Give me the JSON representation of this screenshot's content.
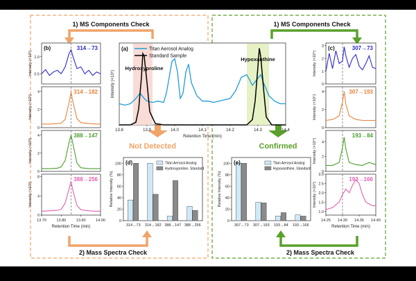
{
  "colors": {
    "orange": "#f0a46a",
    "green": "#5aa02c",
    "blue_trace": "#1f9bd8",
    "black_trace": "#000000",
    "light_blue_bar": "#cfe9f7",
    "gray_bar": "#8a8a8a",
    "pink_highlight": "#f9dcd6",
    "green_highlight": "#e6f1c5",
    "trace_blue": "#2a2ad0",
    "trace_orange": "#e8823a",
    "trace_green": "#4a9e2a",
    "trace_pink": "#e060b0"
  },
  "labels": {
    "ms_check_left": "1) MS Components Check",
    "ms_check_right": "1) MS Components Check",
    "mass_check_left": "2) Mass Spectra Check",
    "mass_check_right": "2) Mass Spectra Check",
    "not_detected": "Not Detected",
    "confirmed": "Confirmed"
  },
  "chart_data": [
    {
      "id": "b",
      "panel_label": "(b)",
      "type": "line",
      "xlabel": "Retention Time (min)",
      "ylabel": "Intensity (×10³)",
      "xlim": [
        13.7,
        14.0
      ],
      "x_ticks": [
        "13.70",
        "13.80",
        "13.90",
        "14.00"
      ],
      "dashed_x": 13.85,
      "subplots": [
        {
          "label": "314→73",
          "color": "#2a2ad0",
          "ylim": [
            0.2,
            1.4
          ],
          "y_ticks": [
            "0.5",
            "1.0"
          ],
          "x": [
            13.7,
            13.72,
            13.74,
            13.76,
            13.78,
            13.8,
            13.82,
            13.84,
            13.85,
            13.86,
            13.88,
            13.9,
            13.92,
            13.94,
            13.96,
            13.98,
            14.0
          ],
          "y": [
            0.5,
            0.62,
            0.45,
            0.55,
            0.6,
            0.5,
            0.7,
            1.1,
            1.2,
            1.0,
            0.65,
            0.7,
            0.5,
            0.6,
            0.45,
            0.55,
            0.5
          ]
        },
        {
          "label": "314→182",
          "color": "#e8823a",
          "ylim": [
            0,
            4.5
          ],
          "y_ticks": [
            "0",
            "2",
            "4"
          ],
          "x": [
            13.7,
            13.74,
            13.78,
            13.8,
            13.82,
            13.84,
            13.85,
            13.86,
            13.88,
            13.9,
            13.94,
            13.98,
            14.0
          ],
          "y": [
            0.4,
            0.4,
            0.45,
            0.5,
            0.9,
            2.8,
            3.9,
            2.8,
            1.0,
            0.55,
            0.45,
            0.4,
            0.4
          ]
        },
        {
          "label": "388→147",
          "color": "#4a9e2a",
          "ylim": [
            0,
            4.5
          ],
          "y_ticks": [
            "0",
            "2",
            "4"
          ],
          "x": [
            13.7,
            13.74,
            13.78,
            13.8,
            13.82,
            13.84,
            13.85,
            13.86,
            13.88,
            13.9,
            13.94,
            13.98,
            14.0
          ],
          "y": [
            0.3,
            0.3,
            0.35,
            0.5,
            1.2,
            3.2,
            4.0,
            3.0,
            0.9,
            0.4,
            0.3,
            0.3,
            0.3
          ]
        },
        {
          "label": "388→256",
          "color": "#e060b0",
          "ylim": [
            0,
            8.5
          ],
          "y_ticks": [
            "0",
            "4",
            "8"
          ],
          "x": [
            13.7,
            13.74,
            13.78,
            13.8,
            13.82,
            13.84,
            13.85,
            13.86,
            13.88,
            13.9,
            13.94,
            13.98,
            14.0
          ],
          "y": [
            0.8,
            0.9,
            1.0,
            1.2,
            2.5,
            5.5,
            7.0,
            5.0,
            2.0,
            1.1,
            0.9,
            0.8,
            0.8
          ]
        }
      ]
    },
    {
      "id": "a",
      "panel_label": "(a)",
      "type": "line",
      "xlabel": "Retention Time (min)",
      "ylabel": "Intensity (×10⁵)",
      "xlim": [
        13.8,
        14.4
      ],
      "x_ticks": [
        "13.8",
        "13.9",
        "14.0",
        "14.1",
        "14.2",
        "14.3",
        "14.4"
      ],
      "series": [
        {
          "name": "Titan Aerosol Analog",
          "color": "#1f9bd8",
          "x": [
            13.8,
            13.82,
            13.84,
            13.86,
            13.875,
            13.89,
            13.9,
            13.92,
            13.94,
            13.96,
            13.97,
            13.98,
            13.99,
            14.0,
            14.01,
            14.02,
            14.03,
            14.04,
            14.05,
            14.06,
            14.08,
            14.1,
            14.12,
            14.14,
            14.16,
            14.18,
            14.2,
            14.22,
            14.24,
            14.26,
            14.28,
            14.295,
            14.31,
            14.32,
            14.34,
            14.36,
            14.38,
            14.4
          ],
          "y": [
            0.8,
            0.75,
            0.8,
            1.0,
            1.2,
            1.0,
            0.9,
            0.85,
            0.9,
            0.85,
            1.2,
            1.8,
            2.4,
            2.5,
            2.0,
            1.0,
            1.2,
            2.0,
            2.3,
            1.6,
            1.1,
            0.9,
            0.9,
            0.85,
            0.9,
            0.95,
            1.0,
            1.3,
            1.8,
            1.9,
            1.5,
            1.7,
            1.9,
            1.6,
            1.1,
            0.9,
            0.8,
            0.8
          ]
        },
        {
          "name": "Standard Sample",
          "color": "#000000",
          "x": [
            13.8,
            13.84,
            13.86,
            13.87,
            13.88,
            13.885,
            13.89,
            13.9,
            13.91,
            13.93,
            13.96,
            14.0,
            14.1,
            14.2,
            14.26,
            14.28,
            14.29,
            14.3,
            14.305,
            14.31,
            14.32,
            14.33,
            14.35,
            14.4
          ],
          "y": [
            0,
            0,
            0.1,
            0.6,
            1.8,
            2.7,
            2.6,
            1.6,
            0.5,
            0.05,
            0,
            0,
            0,
            0,
            0,
            0.2,
            0.9,
            2.2,
            2.9,
            2.6,
            1.4,
            0.3,
            0,
            0
          ]
        }
      ],
      "annotations": [
        "Hydroxyproline",
        "Hypoxanthine"
      ],
      "highlights": [
        [
          13.85,
          13.92
        ],
        [
          14.26,
          14.34
        ]
      ],
      "legend_position": "top-left"
    },
    {
      "id": "c",
      "panel_label": "(c)",
      "type": "line",
      "xlabel": "Retention Time (min)",
      "ylabel": "Intensity (×10⁴)",
      "xlim": [
        14.25,
        14.4
      ],
      "x_ticks": [
        "14.25",
        "14.30",
        "14.35",
        "14.40"
      ],
      "dashed_x": 14.3,
      "subplots": [
        {
          "label": "307→73",
          "color": "#2a2ad0",
          "ylim": [
            0,
            3.2
          ],
          "y_ticks": [
            "0",
            "1",
            "2",
            "3"
          ],
          "x": [
            14.25,
            14.26,
            14.27,
            14.28,
            14.29,
            14.3,
            14.305,
            14.31,
            14.32,
            14.33,
            14.34,
            14.35,
            14.36,
            14.37,
            14.38,
            14.39,
            14.4
          ],
          "y": [
            1.0,
            2.4,
            1.2,
            2.6,
            1.6,
            1.8,
            2.9,
            2.2,
            1.3,
            2.0,
            2.3,
            1.4,
            1.1,
            1.6,
            2.2,
            1.3,
            1.2
          ]
        },
        {
          "label": "307→193",
          "color": "#e8823a",
          "ylim": [
            0,
            4.5
          ],
          "y_ticks": [
            "0",
            "2",
            "4"
          ],
          "x": [
            14.25,
            14.27,
            14.29,
            14.3,
            14.305,
            14.31,
            14.32,
            14.34,
            14.36,
            14.38,
            14.4
          ],
          "y": [
            0.8,
            0.9,
            1.3,
            2.8,
            4.0,
            2.6,
            1.3,
            0.9,
            0.8,
            0.8,
            0.8
          ]
        },
        {
          "label": "193→84",
          "color": "#4a9e2a",
          "ylim": [
            0,
            5.5
          ],
          "y_ticks": [
            "0",
            "2",
            "4"
          ],
          "x": [
            14.25,
            14.27,
            14.29,
            14.3,
            14.305,
            14.31,
            14.32,
            14.34,
            14.36,
            14.38,
            14.4
          ],
          "y": [
            0.8,
            0.8,
            1.2,
            3.2,
            4.6,
            3.0,
            1.2,
            0.9,
            0.8,
            1.2,
            0.9
          ]
        },
        {
          "label": "193→166",
          "color": "#e060b0",
          "ylim": [
            0.8,
            3.0
          ],
          "y_ticks": [
            "1.0",
            "1.5",
            "2.0",
            "2.5",
            "3.0"
          ],
          "x": [
            14.25,
            14.27,
            14.29,
            14.3,
            14.31,
            14.32,
            14.33,
            14.34,
            14.35,
            14.36,
            14.37,
            14.38,
            14.39,
            14.4
          ],
          "y": [
            1.1,
            1.2,
            1.5,
            1.9,
            2.2,
            2.0,
            2.4,
            2.7,
            2.5,
            1.9,
            1.5,
            1.4,
            1.3,
            1.3
          ]
        }
      ]
    },
    {
      "id": "d",
      "panel_label": "(d)",
      "type": "bar",
      "ylabel": "Relative Intensity (%)",
      "ylim": [
        0,
        110
      ],
      "y_ticks": [
        "0",
        "20",
        "40",
        "60",
        "80",
        "100"
      ],
      "categories": [
        "314→73",
        "314→182",
        "388→147",
        "388→256"
      ],
      "series": [
        {
          "name": "Titan Aerosol Analog",
          "color": "#cfe9f7",
          "values": [
            36,
            100,
            8,
            25
          ]
        },
        {
          "name": "Hydroxyproline, Standard",
          "color": "#8a8a8a",
          "values": [
            100,
            46,
            70,
            18
          ]
        }
      ],
      "legend_position": "top-right"
    },
    {
      "id": "e",
      "panel_label": "(e)",
      "type": "bar",
      "ylabel": "Relative Intensity (%)",
      "ylim": [
        0,
        110
      ],
      "y_ticks": [
        "0",
        "20",
        "40",
        "60",
        "80",
        "100"
      ],
      "categories": [
        "307→73",
        "307→193",
        "193→84",
        "193→166"
      ],
      "series": [
        {
          "name": "Titan Aerosol Analog",
          "color": "#cfe9f7",
          "values": [
            100,
            32,
            8,
            10
          ]
        },
        {
          "name": "Hypoxanthine, Standard",
          "color": "#8a8a8a",
          "values": [
            100,
            31,
            14,
            8
          ]
        }
      ],
      "legend_position": "top-right"
    }
  ]
}
